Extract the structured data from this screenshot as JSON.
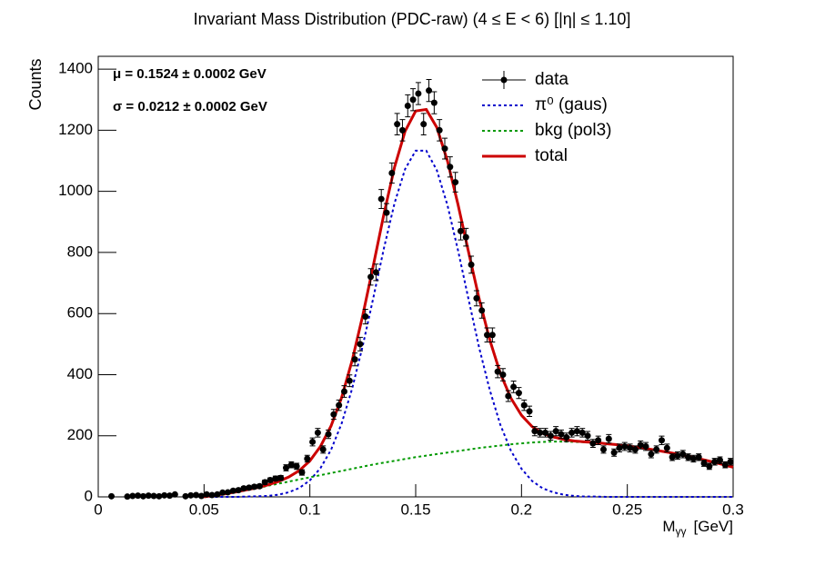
{
  "chart_data": {
    "type": "scatter",
    "title": "Invariant Mass Distribution (PDC-raw)   (4 ≤ E < 6)   [|η| ≤ 1.10]",
    "xlabel": {
      "main": "M",
      "sub": "γγ",
      "unit": "[GeV]"
    },
    "ylabel": "Counts",
    "annotations": [
      "μ = 0.1524 ± 0.0002 GeV",
      "σ = 0.0212 ± 0.0002 GeV"
    ],
    "xlim": [
      0,
      0.3
    ],
    "ylim": [
      0,
      1442
    ],
    "xticks": [
      0,
      0.05,
      0.1,
      0.15,
      0.2,
      0.25,
      0.3
    ],
    "yticks": [
      0,
      200,
      400,
      600,
      800,
      1000,
      1200,
      1400
    ],
    "data_name": "data",
    "data_color": "#000000",
    "x": [
      0.00625,
      0.01375,
      0.01625,
      0.01875,
      0.02125,
      0.02375,
      0.02625,
      0.02875,
      0.03125,
      0.03375,
      0.03625,
      0.04125,
      0.04375,
      0.04625,
      0.04875,
      0.05125,
      0.05375,
      0.05625,
      0.05875,
      0.06125,
      0.06375,
      0.06625,
      0.06875,
      0.07125,
      0.07375,
      0.07625,
      0.07875,
      0.08125,
      0.08375,
      0.08625,
      0.08875,
      0.09125,
      0.09375,
      0.09625,
      0.09875,
      0.10125,
      0.10375,
      0.10625,
      0.10875,
      0.11125,
      0.11375,
      0.11625,
      0.11875,
      0.12125,
      0.12375,
      0.12625,
      0.12875,
      0.13125,
      0.13375,
      0.13625,
      0.13875,
      0.14125,
      0.14375,
      0.14625,
      0.14875,
      0.15125,
      0.15375,
      0.15625,
      0.15875,
      0.16125,
      0.16375,
      0.16625,
      0.16875,
      0.17125,
      0.17375,
      0.17625,
      0.17875,
      0.18125,
      0.18375,
      0.18625,
      0.18875,
      0.19125,
      0.19375,
      0.19625,
      0.19875,
      0.20125,
      0.20375,
      0.20625,
      0.20875,
      0.21125,
      0.21375,
      0.21625,
      0.21875,
      0.22125,
      0.22375,
      0.22625,
      0.22875,
      0.23125,
      0.23375,
      0.23625,
      0.23875,
      0.24125,
      0.24375,
      0.24625,
      0.24875,
      0.25125,
      0.25375,
      0.25625,
      0.25875,
      0.26125,
      0.26375,
      0.26625,
      0.26875,
      0.27125,
      0.27375,
      0.27625,
      0.27875,
      0.28125,
      0.28375,
      0.28625,
      0.28875,
      0.29125,
      0.29375,
      0.29625,
      0.29875
    ],
    "values": [
      2,
      1,
      3,
      4,
      2,
      4,
      3,
      2,
      5,
      4,
      8,
      2,
      5,
      6,
      3,
      8,
      6,
      8,
      14,
      15,
      20,
      22,
      28,
      30,
      33,
      35,
      48,
      55,
      60,
      62,
      95,
      105,
      100,
      80,
      125,
      180,
      210,
      155,
      205,
      270,
      300,
      345,
      380,
      450,
      500,
      590,
      720,
      735,
      975,
      930,
      1060,
      1220,
      1200,
      1280,
      1300,
      1320,
      1220,
      1330,
      1290,
      1200,
      1140,
      1080,
      1030,
      870,
      850,
      760,
      650,
      610,
      530,
      530,
      410,
      400,
      330,
      360,
      340,
      300,
      280,
      215,
      210,
      210,
      200,
      215,
      205,
      195,
      210,
      215,
      210,
      200,
      175,
      185,
      155,
      190,
      145,
      160,
      165,
      160,
      155,
      170,
      165,
      140,
      155,
      185,
      160,
      130,
      135,
      140,
      130,
      125,
      130,
      110,
      100,
      115,
      120,
      105,
      115
    ],
    "errors": [
      1,
      1,
      2,
      2,
      1,
      2,
      2,
      1,
      2,
      2,
      3,
      1,
      2,
      2,
      2,
      3,
      2,
      3,
      4,
      4,
      4,
      5,
      5,
      5,
      6,
      6,
      7,
      7,
      8,
      8,
      10,
      10,
      10,
      9,
      11,
      13,
      14,
      12,
      14,
      16,
      17,
      19,
      19,
      21,
      22,
      24,
      27,
      27,
      31,
      30,
      33,
      35,
      35,
      36,
      36,
      36,
      35,
      36,
      36,
      35,
      34,
      33,
      32,
      29,
      29,
      28,
      25,
      25,
      23,
      23,
      20,
      20,
      18,
      19,
      18,
      17,
      17,
      15,
      14,
      14,
      14,
      15,
      14,
      14,
      14,
      15,
      14,
      14,
      13,
      14,
      12,
      14,
      12,
      13,
      13,
      13,
      12,
      13,
      13,
      12,
      12,
      14,
      13,
      11,
      12,
      12,
      11,
      11,
      11,
      10,
      10,
      11,
      11,
      10,
      11
    ],
    "curve_x": [
      0.05,
      0.055,
      0.06,
      0.065,
      0.07,
      0.075,
      0.08,
      0.085,
      0.09,
      0.095,
      0.1,
      0.105,
      0.11,
      0.115,
      0.12,
      0.125,
      0.13,
      0.135,
      0.14,
      0.145,
      0.15,
      0.155,
      0.16,
      0.165,
      0.17,
      0.175,
      0.18,
      0.185,
      0.19,
      0.195,
      0.2,
      0.205,
      0.21,
      0.215,
      0.22,
      0.225,
      0.23,
      0.235,
      0.24,
      0.245,
      0.25,
      0.255,
      0.26,
      0.265,
      0.27,
      0.275,
      0.28,
      0.285,
      0.29,
      0.295,
      0.3
    ],
    "series": [
      {
        "name": "π⁰ (gaus)",
        "color": "#0000cc",
        "style": "dotted",
        "values": [
          0,
          0,
          0,
          0,
          1,
          2,
          3,
          7,
          15,
          29,
          54,
          94,
          154,
          240,
          355,
          495,
          652,
          814,
          961,
          1073,
          1133,
          1133,
          1069,
          955,
          807,
          646,
          488,
          350,
          236,
          151,
          92,
          52,
          28,
          15,
          7,
          3,
          1,
          1,
          0,
          0,
          0,
          0,
          0,
          0,
          0,
          0,
          0,
          0,
          0,
          0,
          0
        ]
      },
      {
        "name": "bkg (pol3)",
        "color": "#009900",
        "style": "dotted",
        "values": [
          0,
          5,
          10,
          16,
          22,
          28,
          36,
          43,
          50,
          57,
          64,
          71,
          78,
          85,
          92,
          99,
          106,
          112,
          118,
          124,
          130,
          135,
          140,
          145,
          150,
          155,
          160,
          164,
          168,
          172,
          175,
          178,
          180,
          181,
          181,
          180,
          179,
          177,
          174,
          171,
          167,
          162,
          157,
          151,
          145,
          138,
          131,
          123,
          115,
          106,
          97
        ]
      },
      {
        "name": "total",
        "color": "#cc0000",
        "style": "solid",
        "values": [
          0,
          5,
          10,
          16,
          23,
          30,
          39,
          50,
          65,
          86,
          118,
          165,
          232,
          325,
          447,
          594,
          758,
          926,
          1079,
          1197,
          1263,
          1268,
          1209,
          1100,
          957,
          801,
          648,
          514,
          404,
          323,
          267,
          230,
          208,
          196,
          188,
          183,
          180,
          178,
          174,
          171,
          167,
          162,
          157,
          151,
          145,
          138,
          131,
          123,
          115,
          106,
          97
        ]
      }
    ]
  }
}
